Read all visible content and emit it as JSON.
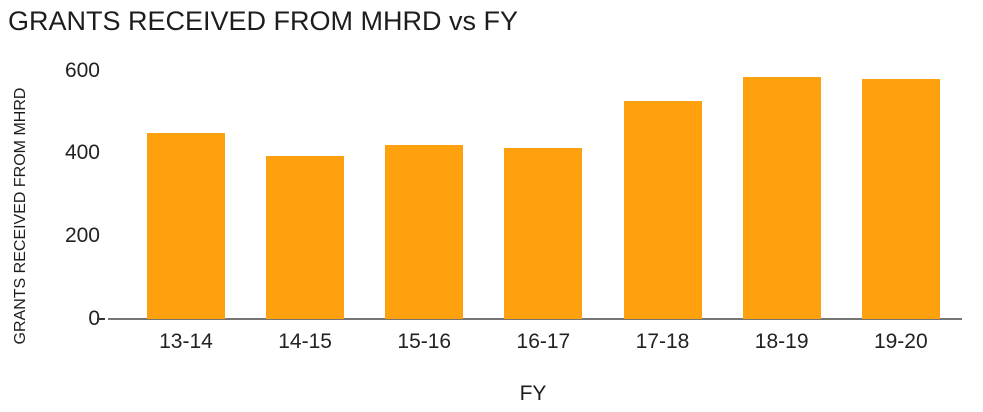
{
  "chart_data": {
    "type": "bar",
    "title": "GRANTS RECEIVED FROM MHRD vs FY",
    "xlabel": "FY",
    "ylabel": "GRANTS RECEIVED FROM MHRD",
    "categories": [
      "13-14",
      "14-15",
      "15-16",
      "16-17",
      "17-18",
      "18-19",
      "19-20"
    ],
    "values": [
      450,
      393,
      420,
      412,
      526,
      584,
      579
    ],
    "ylim": [
      0,
      600
    ],
    "yticks": [
      0,
      200,
      400,
      600
    ],
    "grid": false,
    "legend": "none",
    "bar_color": "#ffa00e",
    "axis_color": "#757575",
    "text_color": "#1d1d1d"
  }
}
